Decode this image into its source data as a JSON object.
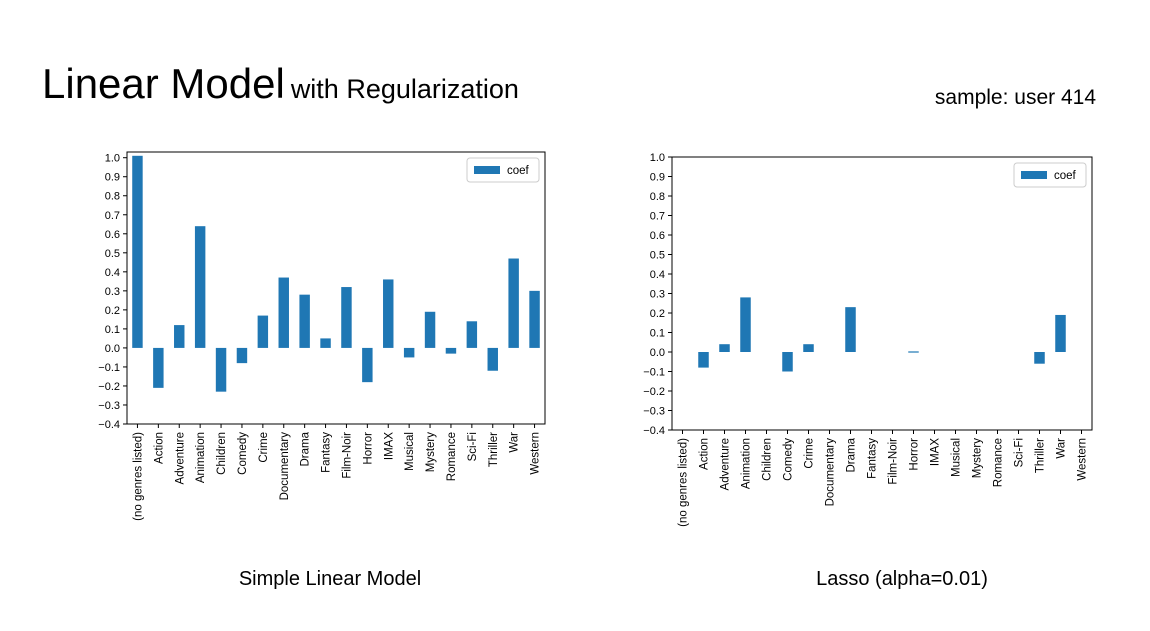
{
  "slide": {
    "title_main": "Linear Model",
    "title_sub": "with Regularization",
    "sample_label": "sample: user 414"
  },
  "colors": {
    "bar": "#1f77b4",
    "axis": "#000000",
    "background": "#ffffff"
  },
  "chart_data": [
    {
      "type": "bar",
      "title": "",
      "caption": "Simple Linear Model",
      "xlabel": "",
      "ylabel": "",
      "legend": {
        "position": "top-right",
        "entries": [
          "coef"
        ]
      },
      "grid": false,
      "ylim": [
        -0.4,
        1.03
      ],
      "yticks": [
        -0.4,
        -0.3,
        -0.2,
        -0.1,
        0.0,
        0.1,
        0.2,
        0.3,
        0.4,
        0.5,
        0.6,
        0.7,
        0.8,
        0.9,
        1.0
      ],
      "ytick_labels": [
        "−0.4",
        "−0.3",
        "−0.2",
        "−0.1",
        "0.0",
        "0.1",
        "0.2",
        "0.3",
        "0.4",
        "0.5",
        "0.6",
        "0.7",
        "0.8",
        "0.9",
        "1.0"
      ],
      "categories": [
        "(no genres listed)",
        "Action",
        "Adventure",
        "Animation",
        "Children",
        "Comedy",
        "Crime",
        "Documentary",
        "Drama",
        "Fantasy",
        "Film-Noir",
        "Horror",
        "IMAX",
        "Musical",
        "Mystery",
        "Romance",
        "Sci-Fi",
        "Thriller",
        "War",
        "Western"
      ],
      "series": [
        {
          "name": "coef",
          "values": [
            1.01,
            -0.21,
            0.12,
            0.64,
            -0.23,
            -0.08,
            0.17,
            0.37,
            0.28,
            0.05,
            0.32,
            -0.18,
            0.36,
            -0.05,
            0.19,
            -0.03,
            0.14,
            -0.12,
            0.47,
            0.3
          ]
        }
      ]
    },
    {
      "type": "bar",
      "title": "",
      "caption": "Lasso (alpha=0.01)",
      "xlabel": "",
      "ylabel": "",
      "legend": {
        "position": "top-right",
        "entries": [
          "coef"
        ]
      },
      "grid": false,
      "ylim": [
        -0.4,
        1.0
      ],
      "yticks": [
        -0.4,
        -0.3,
        -0.2,
        -0.1,
        0.0,
        0.1,
        0.2,
        0.3,
        0.4,
        0.5,
        0.6,
        0.7,
        0.8,
        0.9,
        1.0
      ],
      "ytick_labels": [
        "−0.4",
        "−0.3",
        "−0.2",
        "−0.1",
        "0.0",
        "0.1",
        "0.2",
        "0.3",
        "0.4",
        "0.5",
        "0.6",
        "0.7",
        "0.8",
        "0.9",
        "1.0"
      ],
      "categories": [
        "(no genres listed)",
        "Action",
        "Adventure",
        "Animation",
        "Children",
        "Comedy",
        "Crime",
        "Documentary",
        "Drama",
        "Fantasy",
        "Film-Noir",
        "Horror",
        "IMAX",
        "Musical",
        "Mystery",
        "Romance",
        "Sci-Fi",
        "Thriller",
        "War",
        "Western"
      ],
      "series": [
        {
          "name": "coef",
          "values": [
            0.0,
            -0.08,
            0.04,
            0.28,
            0.0,
            -0.1,
            0.04,
            0.0,
            0.23,
            0.0,
            0.0,
            -0.005,
            0.0,
            0.0,
            0.0,
            0.0,
            0.0,
            -0.06,
            0.19,
            0.0
          ]
        }
      ]
    }
  ]
}
